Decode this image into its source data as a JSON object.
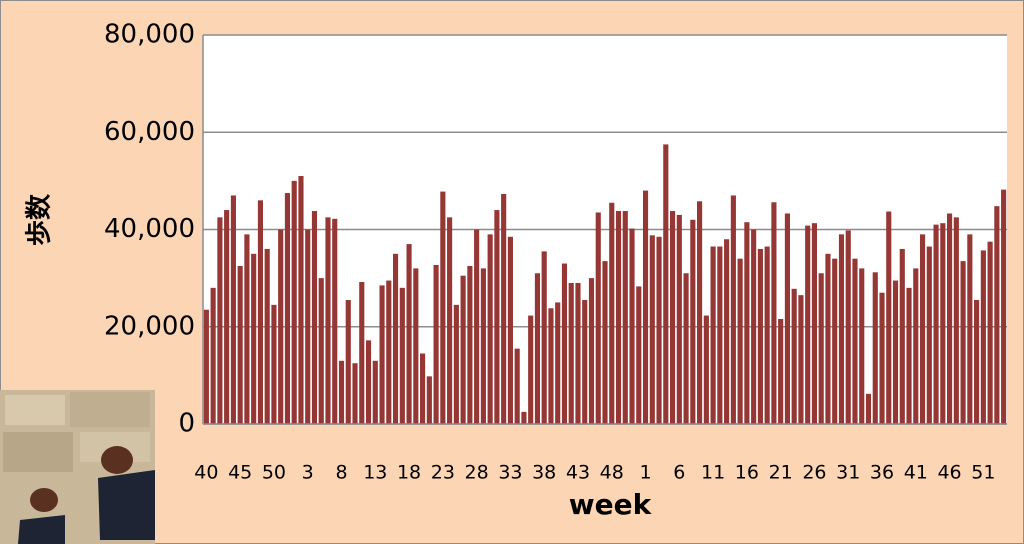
{
  "chart_data": {
    "type": "bar",
    "x_label": "week",
    "y_label": "歩数",
    "categories": [
      "40",
      null,
      null,
      null,
      null,
      "45",
      null,
      null,
      null,
      null,
      "50",
      null,
      null,
      null,
      null,
      "3",
      null,
      null,
      null,
      null,
      "8",
      null,
      null,
      null,
      null,
      "13",
      null,
      null,
      null,
      null,
      "18",
      null,
      null,
      null,
      null,
      "23",
      null,
      null,
      null,
      null,
      "28",
      null,
      null,
      null,
      null,
      "33",
      null,
      null,
      null,
      null,
      "38",
      null,
      null,
      null,
      null,
      "43",
      null,
      null,
      null,
      null,
      "48",
      null,
      null,
      null,
      null,
      "1",
      null,
      null,
      null,
      null,
      "6",
      null,
      null,
      null,
      null,
      "11",
      null,
      null,
      null,
      null,
      "16",
      null,
      null,
      null,
      null,
      "21",
      null,
      null,
      null,
      null,
      "26",
      null,
      null,
      null,
      null,
      "31",
      null,
      null,
      null,
      null,
      "36",
      null,
      null,
      null,
      null,
      "41",
      null,
      null,
      null,
      null,
      "46",
      null,
      null,
      null,
      null,
      "51",
      null,
      null,
      null
    ],
    "values": [
      23500,
      28000,
      42500,
      44000,
      47000,
      32500,
      39000,
      35000,
      46000,
      36000,
      24500,
      40000,
      47500,
      50000,
      51000,
      40000,
      43800,
      30000,
      42500,
      42200,
      13000,
      25500,
      12500,
      29200,
      17200,
      13000,
      28500,
      29500,
      35000,
      28000,
      37000,
      32000,
      14500,
      9800,
      32700,
      47800,
      42500,
      24500,
      30500,
      32500,
      40000,
      32000,
      39000,
      44000,
      47300,
      38500,
      15500,
      2500,
      22300,
      31000,
      35500,
      23800,
      25000,
      33000,
      29000,
      29000,
      25500,
      30000,
      43500,
      33500,
      45500,
      43800,
      43800,
      40200,
      28300,
      48000,
      38800,
      38500,
      57500,
      43800,
      43000,
      31000,
      42000,
      45800,
      22300,
      36500,
      36500,
      38000,
      47000,
      34000,
      41500,
      40000,
      36000,
      36500,
      45600,
      21600,
      43300,
      27800,
      26500,
      40800,
      41300,
      31000,
      35000,
      34000,
      39000,
      39800,
      34000,
      32000,
      6200,
      31200,
      27000,
      43700,
      29500,
      36000,
      28000,
      32000,
      39000,
      36500,
      41000,
      41300,
      43300,
      42500,
      33500,
      39000,
      25500,
      35700,
      37500,
      44800,
      48200
    ],
    "color": "#953735",
    "ylim": [
      0,
      80000
    ],
    "yticks": [
      0,
      {
        "value": 20000,
        "label": "20,000"
      },
      {
        "value": 40000,
        "label": "40,000"
      },
      {
        "value": 60000,
        "label": "60,000"
      },
      {
        "value": 80000,
        "label": "80,000"
      }
    ],
    "grid": true
  }
}
